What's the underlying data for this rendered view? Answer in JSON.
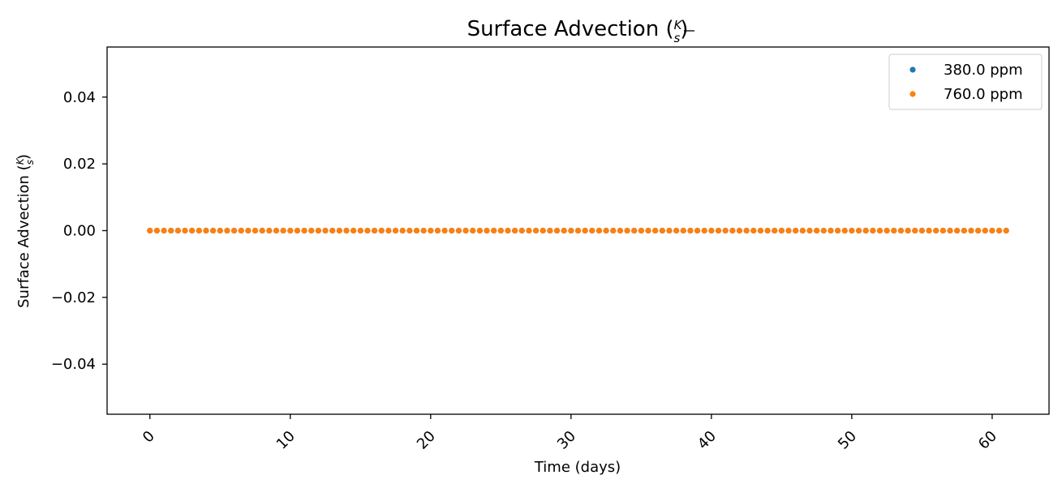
{
  "chart_data": {
    "type": "scatter",
    "title": "Surface Advection (K/s)",
    "title_parts": {
      "prefix": "Surface Advection (",
      "num": "K",
      "den": "s",
      "suffix": ")"
    },
    "xlabel": "Time (days)",
    "ylabel": "Surface Advection (K/s)",
    "ylabel_parts": {
      "prefix": "Surface Advection (",
      "num": "K",
      "den": "s",
      "suffix": ")"
    },
    "xlim": [
      -3.05,
      64.05
    ],
    "ylim": [
      -0.055,
      0.055
    ],
    "xticks": [
      0,
      10,
      20,
      30,
      40,
      50,
      60
    ],
    "xtick_labels": [
      "0",
      "10",
      "20",
      "30",
      "40",
      "50",
      "60"
    ],
    "yticks": [
      0.04,
      0.02,
      0.0,
      -0.02,
      -0.04
    ],
    "ytick_labels": [
      "0.04",
      "0.02",
      "0.00",
      "−0.02",
      "−0.04"
    ],
    "x_start": 0,
    "x_step": 0.5,
    "x_end": 61,
    "grid": false,
    "legend_position": "top-right",
    "series": [
      {
        "name": "380.0 ppm",
        "color": "#1f77b4",
        "y_constant": 0.0
      },
      {
        "name": "760.0 ppm",
        "color": "#ff7f0e",
        "y_constant": 0.0
      }
    ]
  }
}
